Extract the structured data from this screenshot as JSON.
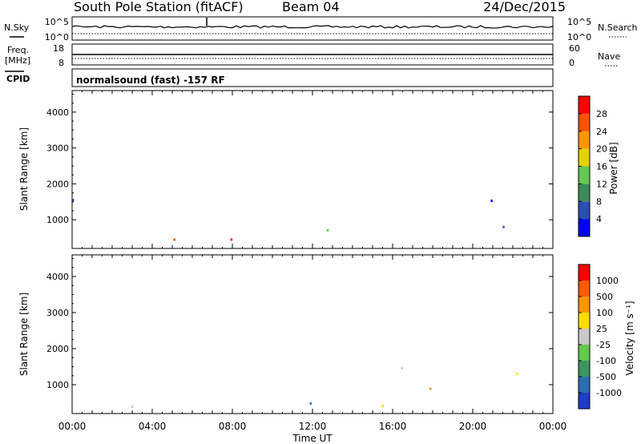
{
  "header": {
    "station": "South Pole Station (fitACF)",
    "beam": "Beam 04",
    "date": "24/Dec/2015"
  },
  "top_panels": {
    "nsky_label": "N.Sky",
    "nsky_ticks": [
      "10^5",
      "10^0"
    ],
    "nsearch_label": "N.Search",
    "nsearch_ticks": [
      "10^5",
      "10^0"
    ],
    "freq_label": "Freq.",
    "freq_unit": "[MHz]",
    "freq_ticks": [
      "18",
      "8"
    ],
    "nave_label": "Nave",
    "nave_ticks": [
      "60",
      "0"
    ],
    "cpid_label": "CPID",
    "cpid_text": "normalsound (fast) -157 RF"
  },
  "chart_data": [
    {
      "type": "heatmap",
      "name": "power",
      "ylabel": "Slant Range [km]",
      "ylim": [
        200,
        4600
      ],
      "yticks": [
        "1000",
        "2000",
        "3000",
        "4000"
      ],
      "xlim": [
        0,
        24
      ],
      "colorbar_label": "Power [dB]",
      "colorbar_ticks": [
        "28",
        "24",
        "20",
        "16",
        "12",
        "8",
        "4"
      ],
      "colorbar_colors": [
        "#0000ff",
        "#2a50b4",
        "#3c8c5a",
        "#64c850",
        "#e6d200",
        "#ff9600",
        "#ff5000",
        "#ff0000"
      ]
    },
    {
      "type": "heatmap",
      "name": "velocity",
      "ylabel": "Slant Range [km]",
      "ylim": [
        200,
        4600
      ],
      "yticks": [
        "1000",
        "2000",
        "3000",
        "4000"
      ],
      "xlim": [
        0,
        24
      ],
      "xlabel": "Time UT",
      "xticks": [
        "00:00",
        "04:00",
        "08:00",
        "12:00",
        "16:00",
        "20:00",
        "00:00"
      ],
      "colorbar_label": "Velocity [m s⁻¹]",
      "colorbar_ticks": [
        "1000",
        "500",
        "100",
        "25",
        "-25",
        "-100",
        "-500",
        "-1000"
      ],
      "colorbar_colors": [
        "#1e3cc8",
        "#2d6eb4",
        "#3c9660",
        "#64c84b",
        "#c8c8c8",
        "#ffdc00",
        "#ff9600",
        "#ff5a00",
        "#ff0000"
      ]
    }
  ]
}
